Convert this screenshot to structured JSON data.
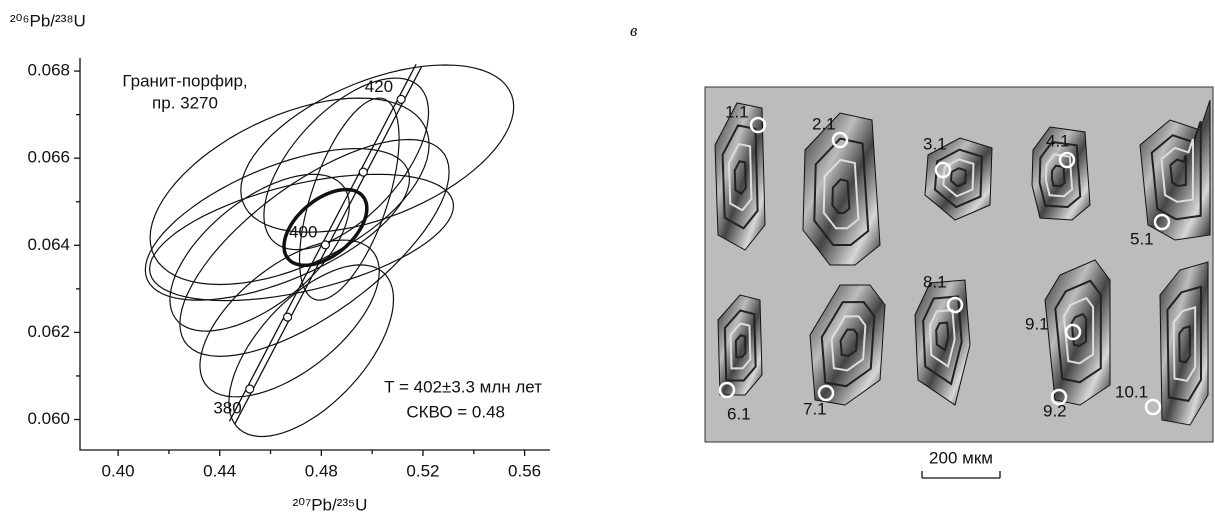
{
  "chart_data": {
    "type": "concordia",
    "x_label": "²⁰⁷Pb/²³⁵U",
    "y_label": "²⁰⁶Pb/²³⁸U",
    "xlim": [
      0.385,
      0.57
    ],
    "ylim": [
      0.0593,
      0.0683
    ],
    "xticks": [
      {
        "value": 0.4,
        "label": "0.40"
      },
      0.44,
      0.48,
      0.52,
      0.56
    ],
    "xticks_minor": [
      0.42,
      0.46,
      0.5,
      0.54
    ],
    "yticks": [
      {
        "value": 0.06,
        "label": "0.060"
      },
      0.062,
      0.064,
      0.066,
      0.068
    ],
    "yticks_minor": [
      0.061,
      0.063,
      0.065,
      0.067
    ],
    "sample_label": [
      "Гранит-порфир,",
      "пр. 3270"
    ],
    "annotations": [
      "T = 402±3.3 млн лет",
      "СКВО = 0.48"
    ],
    "concordia": {
      "x": [
        0.4518,
        0.4667,
        0.4816,
        0.4965,
        0.5114
      ],
      "y": [
        0.0607,
        0.06235,
        0.06401,
        0.06568,
        0.06735
      ],
      "labels": [
        380,
        null,
        400,
        null,
        420
      ]
    },
    "ellipses": {
      "x": [
        0.502,
        0.4675,
        0.4627,
        0.476,
        0.4675,
        0.4773,
        0.4898,
        0.491,
        0.4722,
        0.4557
      ],
      "y": [
        0.06622,
        0.06524,
        0.06448,
        0.06158,
        0.06232,
        0.06394,
        0.06587,
        0.06506,
        0.06418,
        0.06383
      ],
      "x_err": [
        0.0537,
        0.0549,
        0.052,
        0.0324,
        0.0353,
        0.053,
        0.0324,
        0.0196,
        0.0598,
        0.0353
      ],
      "y_err": [
        0.00192,
        0.00214,
        0.00174,
        0.00197,
        0.0018,
        0.00249,
        0.00197,
        0.00232,
        0.00145,
        0.0018
      ],
      "rho": [
        0.5,
        0.5,
        0.6,
        0.6,
        0.6,
        0.7,
        0.6,
        0.6,
        0.5,
        0.6
      ]
    },
    "mean_ellipse": {
      "x": 0.4816,
      "y": 0.06441,
      "x_err": 0.0163,
      "y_err": 0.00087,
      "rho": 0.5
    }
  },
  "panel_label": "в",
  "zircon_panel": {
    "labels": [
      "1.1",
      "2.1",
      "3.1",
      "4.1",
      "5.1",
      "6.1",
      "7.1",
      "8.1",
      "9.1",
      "9.2",
      "10.1"
    ],
    "scale": "200 мкм"
  }
}
